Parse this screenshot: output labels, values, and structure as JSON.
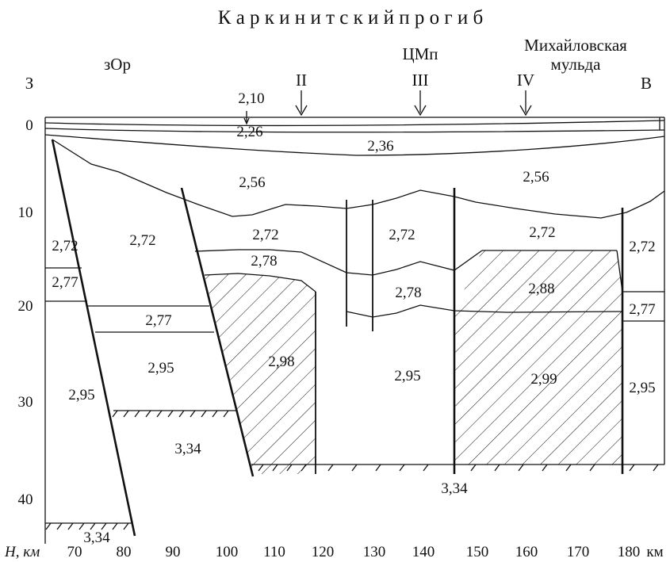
{
  "title": "К а р к и н и т с к и й   п р о г и б",
  "labels": {
    "zOr": "зОр",
    "tsmp": "ЦМп",
    "mikh1": "Михайловская",
    "mikh2": "мульда",
    "west": "З",
    "east": "В",
    "p2": "II",
    "p3": "III",
    "p4": "IV"
  },
  "densities": {
    "v210": "2,10",
    "v226": "2,26",
    "v236": "2,36",
    "v256a": "2,56",
    "v256b": "2,56",
    "v272a": "2,72",
    "v272b": "2,72",
    "v272c": "2,72",
    "v272d": "2,72",
    "v272e": "2,72",
    "v272f": "2,72",
    "v277a": "2,77",
    "v277b": "2,77",
    "v277c": "2,77",
    "v278a": "2,78",
    "v278b": "2,78",
    "v288": "2,88",
    "v295a": "2,95",
    "v295b": "2,95",
    "v295c": "2,95",
    "v295d": "2,95",
    "v298": "2,98",
    "v299": "2,99",
    "v334a": "3,34",
    "v334b": "3,34",
    "v334c": "3,34"
  },
  "y_axis": {
    "ticks": [
      "0",
      "10",
      "20",
      "30",
      "40"
    ],
    "unit": "H, км"
  },
  "x_axis": {
    "ticks": [
      "70",
      "80",
      "90",
      "100",
      "110",
      "120",
      "130",
      "140",
      "150",
      "160",
      "170",
      "180"
    ],
    "unit": "км"
  }
}
